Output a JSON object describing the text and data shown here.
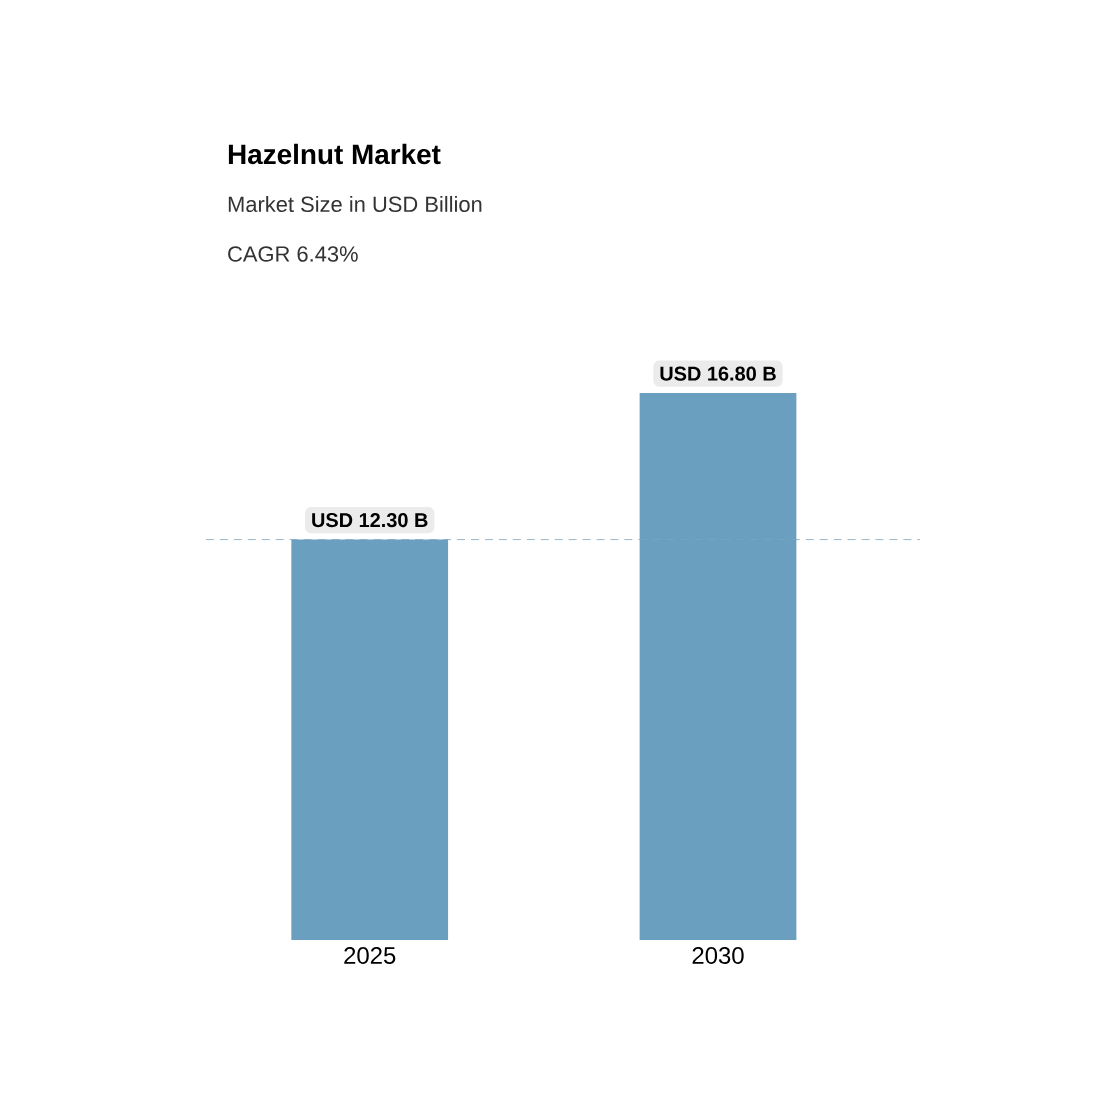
{
  "chart_data": {
    "type": "bar",
    "title": "Hazelnut Market",
    "subtitle": "Market Size in USD Billion",
    "annotations": [
      "CAGR 6.43%"
    ],
    "categories": [
      "2025",
      "2030"
    ],
    "values": [
      12.3,
      16.8
    ],
    "value_labels": [
      "USD 12.30 B",
      "USD 16.80 B"
    ],
    "color": "#6a9fc0",
    "ylim": [
      0,
      18
    ],
    "ref_lines": [
      {
        "axis": "y",
        "value": 12.3,
        "color": "#7fa6c0",
        "line_style": "dashed"
      }
    ]
  }
}
